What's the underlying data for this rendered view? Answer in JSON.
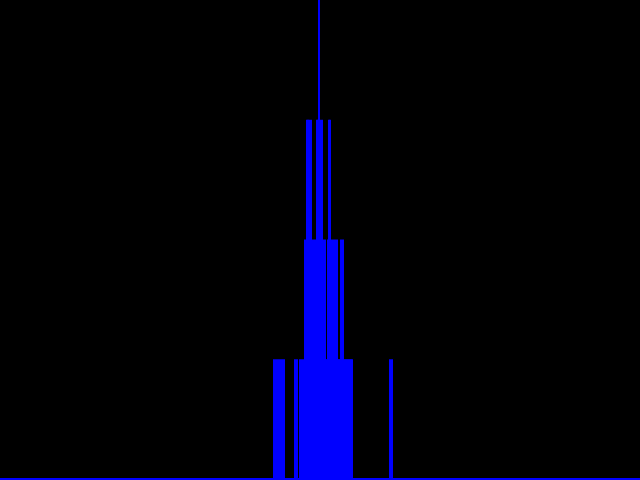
{
  "background_color": "#000000",
  "bar_color": "#0000ff",
  "chart_data": {
    "type": "bar",
    "title": "",
    "xlabel": "",
    "ylabel": "",
    "grid": false,
    "legend": "none",
    "xlim": [
      0,
      640
    ],
    "ylim": [
      0,
      4
    ],
    "x": [
      274,
      276,
      278,
      280,
      282,
      284,
      295,
      297,
      300,
      302,
      304,
      305,
      306,
      307,
      308,
      309,
      310,
      311,
      312,
      313,
      314,
      315,
      316,
      317,
      318,
      319,
      320,
      321,
      322,
      323,
      324,
      325,
      326,
      327,
      328,
      329,
      330,
      331,
      332,
      333,
      334,
      335,
      336,
      337,
      338,
      339,
      340,
      341,
      342,
      343,
      344,
      345,
      346,
      347,
      348,
      349,
      350,
      351,
      352,
      390,
      392
    ],
    "values": [
      1,
      1,
      1,
      1,
      1,
      1,
      1,
      1,
      1,
      1,
      1,
      2,
      2,
      3,
      3,
      3,
      1,
      3,
      2,
      2,
      2,
      2,
      2,
      3,
      3,
      4,
      3,
      2,
      3,
      2,
      2,
      2,
      1,
      1,
      2,
      3,
      3,
      2,
      2,
      2,
      2,
      2,
      2,
      2,
      1,
      1,
      1,
      2,
      2,
      2,
      1,
      1,
      1,
      1,
      1,
      1,
      1,
      1,
      1,
      1,
      1
    ]
  }
}
